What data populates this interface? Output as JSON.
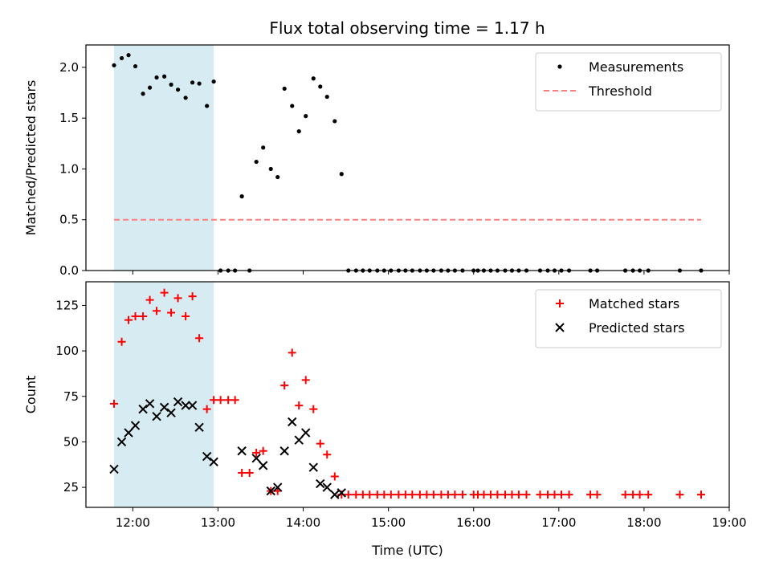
{
  "chart_data": [
    {
      "type": "scatter",
      "title": "Flux total observing time = 1.17 h",
      "xlabel": "",
      "ylabel": "Matched/Predicted stars",
      "xlim": [
        11.45,
        19.0
      ],
      "ylim": [
        0,
        2.22
      ],
      "yticks": [
        0.0,
        0.5,
        1.0,
        1.5,
        2.0
      ],
      "ytick_labels": [
        "0.0",
        "0.5",
        "1.0",
        "1.5",
        "2.0"
      ],
      "grid": false,
      "legend_position": "top-right",
      "shaded_span": [
        11.78,
        12.95
      ],
      "threshold": {
        "name": "Threshold",
        "value": 0.5,
        "x_range": [
          11.78,
          18.67
        ],
        "color": "#ff7f7f",
        "style": "dashed"
      },
      "series": [
        {
          "name": "Measurements",
          "color": "#000000",
          "marker": "dot",
          "points": [
            [
              11.78,
              2.02
            ],
            [
              11.87,
              2.09
            ],
            [
              11.95,
              2.12
            ],
            [
              12.03,
              2.01
            ],
            [
              12.12,
              1.74
            ],
            [
              12.2,
              1.8
            ],
            [
              12.28,
              1.9
            ],
            [
              12.37,
              1.91
            ],
            [
              12.45,
              1.83
            ],
            [
              12.53,
              1.78
            ],
            [
              12.62,
              1.7
            ],
            [
              12.7,
              1.85
            ],
            [
              12.78,
              1.84
            ],
            [
              12.87,
              1.62
            ],
            [
              12.95,
              1.86
            ],
            [
              13.03,
              0.0
            ],
            [
              13.12,
              0.0
            ],
            [
              13.2,
              0.0
            ],
            [
              13.28,
              0.73
            ],
            [
              13.37,
              0.0
            ],
            [
              13.45,
              1.07
            ],
            [
              13.53,
              1.21
            ],
            [
              13.62,
              1.0
            ],
            [
              13.7,
              0.92
            ],
            [
              13.78,
              1.79
            ],
            [
              13.87,
              1.62
            ],
            [
              13.95,
              1.37
            ],
            [
              14.03,
              1.52
            ],
            [
              14.12,
              1.89
            ],
            [
              14.2,
              1.81
            ],
            [
              14.28,
              1.71
            ],
            [
              14.37,
              1.47
            ],
            [
              14.45,
              0.95
            ],
            [
              14.53,
              0.0
            ],
            [
              14.62,
              0.0
            ],
            [
              14.7,
              0.0
            ],
            [
              14.78,
              0.0
            ],
            [
              14.87,
              0.0
            ],
            [
              14.95,
              0.0
            ],
            [
              15.03,
              0.0
            ],
            [
              15.12,
              0.0
            ],
            [
              15.2,
              0.0
            ],
            [
              15.28,
              0.0
            ],
            [
              15.37,
              0.0
            ],
            [
              15.45,
              0.0
            ],
            [
              15.53,
              0.0
            ],
            [
              15.62,
              0.0
            ],
            [
              15.7,
              0.0
            ],
            [
              15.78,
              0.0
            ],
            [
              15.87,
              0.0
            ],
            [
              16.0,
              0.0
            ],
            [
              16.05,
              0.0
            ],
            [
              16.12,
              0.0
            ],
            [
              16.2,
              0.0
            ],
            [
              16.28,
              0.0
            ],
            [
              16.37,
              0.0
            ],
            [
              16.45,
              0.0
            ],
            [
              16.53,
              0.0
            ],
            [
              16.62,
              0.0
            ],
            [
              16.78,
              0.0
            ],
            [
              16.87,
              0.0
            ],
            [
              16.95,
              0.0
            ],
            [
              17.03,
              0.0
            ],
            [
              17.12,
              0.0
            ],
            [
              17.37,
              0.0
            ],
            [
              17.45,
              0.0
            ],
            [
              17.78,
              0.0
            ],
            [
              17.87,
              0.0
            ],
            [
              17.95,
              0.0
            ],
            [
              18.05,
              0.0
            ],
            [
              18.42,
              0.0
            ],
            [
              18.67,
              0.0
            ]
          ]
        }
      ]
    },
    {
      "type": "scatter",
      "title": "",
      "xlabel": "Time (UTC)",
      "ylabel": "Count",
      "xlim": [
        11.45,
        19.0
      ],
      "ylim": [
        14,
        138
      ],
      "xticks": [
        12,
        13,
        14,
        15,
        16,
        17,
        18,
        19
      ],
      "xtick_labels": [
        "12:00",
        "13:00",
        "14:00",
        "15:00",
        "16:00",
        "17:00",
        "18:00",
        "19:00"
      ],
      "yticks": [
        25,
        50,
        75,
        100,
        125
      ],
      "ytick_labels": [
        "25",
        "50",
        "75",
        "100",
        "125"
      ],
      "grid": false,
      "legend_position": "top-right",
      "shaded_span": [
        11.78,
        12.95
      ],
      "series": [
        {
          "name": "Matched stars",
          "color": "#ff0000",
          "marker": "plus",
          "points": [
            [
              11.78,
              71
            ],
            [
              11.87,
              105
            ],
            [
              11.95,
              117
            ],
            [
              12.03,
              119
            ],
            [
              12.12,
              119
            ],
            [
              12.2,
              128
            ],
            [
              12.28,
              122
            ],
            [
              12.37,
              132
            ],
            [
              12.45,
              121
            ],
            [
              12.53,
              129
            ],
            [
              12.62,
              119
            ],
            [
              12.7,
              130
            ],
            [
              12.78,
              107
            ],
            [
              12.87,
              68
            ],
            [
              12.95,
              73
            ],
            [
              13.03,
              73
            ],
            [
              13.12,
              73
            ],
            [
              13.2,
              73
            ],
            [
              13.28,
              33
            ],
            [
              13.37,
              33
            ],
            [
              13.45,
              44
            ],
            [
              13.53,
              45
            ],
            [
              13.62,
              23
            ],
            [
              13.7,
              23
            ],
            [
              13.78,
              81
            ],
            [
              13.87,
              99
            ],
            [
              13.95,
              70
            ],
            [
              14.03,
              84
            ],
            [
              14.12,
              68
            ],
            [
              14.2,
              49
            ],
            [
              14.28,
              43
            ],
            [
              14.37,
              31
            ],
            [
              14.45,
              21
            ],
            [
              14.53,
              21
            ],
            [
              14.62,
              21
            ],
            [
              14.7,
              21
            ],
            [
              14.78,
              21
            ],
            [
              14.87,
              21
            ],
            [
              14.95,
              21
            ],
            [
              15.03,
              21
            ],
            [
              15.12,
              21
            ],
            [
              15.2,
              21
            ],
            [
              15.28,
              21
            ],
            [
              15.37,
              21
            ],
            [
              15.45,
              21
            ],
            [
              15.53,
              21
            ],
            [
              15.62,
              21
            ],
            [
              15.7,
              21
            ],
            [
              15.78,
              21
            ],
            [
              15.87,
              21
            ],
            [
              16.0,
              21
            ],
            [
              16.05,
              21
            ],
            [
              16.12,
              21
            ],
            [
              16.2,
              21
            ],
            [
              16.28,
              21
            ],
            [
              16.37,
              21
            ],
            [
              16.45,
              21
            ],
            [
              16.53,
              21
            ],
            [
              16.62,
              21
            ],
            [
              16.78,
              21
            ],
            [
              16.87,
              21
            ],
            [
              16.95,
              21
            ],
            [
              17.03,
              21
            ],
            [
              17.12,
              21
            ],
            [
              17.37,
              21
            ],
            [
              17.45,
              21
            ],
            [
              17.78,
              21
            ],
            [
              17.87,
              21
            ],
            [
              17.95,
              21
            ],
            [
              18.05,
              21
            ],
            [
              18.42,
              21
            ],
            [
              18.67,
              21
            ]
          ]
        },
        {
          "name": "Predicted stars",
          "color": "#000000",
          "marker": "x",
          "points": [
            [
              11.78,
              35
            ],
            [
              11.87,
              50
            ],
            [
              11.95,
              55
            ],
            [
              12.03,
              59
            ],
            [
              12.12,
              68
            ],
            [
              12.2,
              71
            ],
            [
              12.28,
              64
            ],
            [
              12.37,
              69
            ],
            [
              12.45,
              66
            ],
            [
              12.53,
              72
            ],
            [
              12.62,
              70
            ],
            [
              12.7,
              70
            ],
            [
              12.78,
              58
            ],
            [
              12.87,
              42
            ],
            [
              12.95,
              39
            ],
            [
              13.28,
              45
            ],
            [
              13.45,
              41
            ],
            [
              13.53,
              37
            ],
            [
              13.62,
              23
            ],
            [
              13.7,
              25
            ],
            [
              13.78,
              45
            ],
            [
              13.87,
              61
            ],
            [
              13.95,
              51
            ],
            [
              14.03,
              55
            ],
            [
              14.12,
              36
            ],
            [
              14.2,
              27
            ],
            [
              14.28,
              25
            ],
            [
              14.37,
              21
            ],
            [
              14.45,
              22
            ]
          ]
        }
      ]
    }
  ]
}
